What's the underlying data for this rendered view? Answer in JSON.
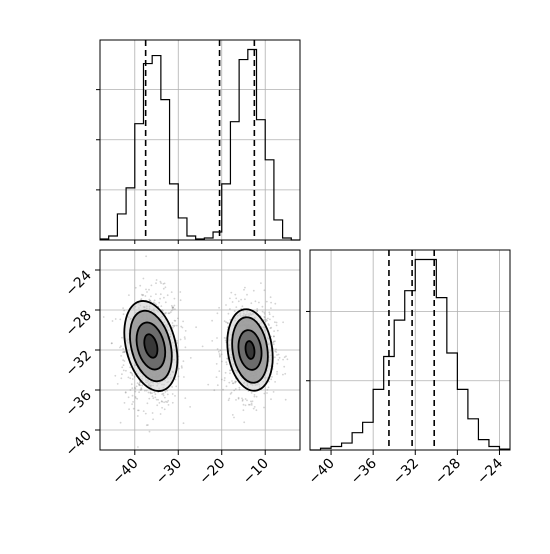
{
  "chart_data": [
    {
      "type": "histogram",
      "panel": "top-left",
      "variable": "x",
      "xlim": [
        -48,
        -2
      ],
      "grid": true,
      "bin_edges": [
        -48,
        -46,
        -44,
        -42,
        -40,
        -38,
        -36,
        -34,
        -32,
        -30,
        -28,
        -26,
        -24,
        -22,
        -20,
        -18,
        -16,
        -14,
        -12,
        -10,
        -8,
        -6,
        -4,
        -2
      ],
      "counts": [
        0.5,
        2,
        13,
        26,
        58,
        88,
        92,
        70,
        28,
        11,
        2,
        0.5,
        1,
        4,
        28,
        59,
        90,
        95,
        60,
        40,
        10,
        1,
        0
      ],
      "quantiles": [
        -37.5,
        -20.5,
        -12.5
      ],
      "y_ticks": [],
      "x_ticks": []
    },
    {
      "type": "scatter",
      "panel": "bottom-left",
      "xlabel": "",
      "ylabel": "",
      "xlim": [
        -48,
        -2
      ],
      "ylim": [
        -42,
        -22
      ],
      "grid": true,
      "x_ticks": [
        "−40",
        "−30",
        "−20",
        "−10"
      ],
      "x_tick_values": [
        -40,
        -30,
        -20,
        -10
      ],
      "y_ticks": [
        "−24",
        "−28",
        "−32",
        "−36",
        "−40"
      ],
      "y_tick_values": [
        -24,
        -28,
        -32,
        -36,
        -40
      ],
      "clusters": [
        {
          "center": [
            -36,
            -32
          ],
          "sd": [
            3.2,
            2.6
          ]
        },
        {
          "center": [
            -13.5,
            -32
          ],
          "sd": [
            2.9,
            2.3
          ]
        }
      ],
      "contours": [
        {
          "center": [
            -36.3,
            -31.6
          ],
          "radii": [
            [
              5.7,
              4.6
            ],
            [
              4.5,
              3.6
            ],
            [
              3.1,
              2.4
            ],
            [
              1.4,
              1.2
            ]
          ],
          "rotation": -14
        },
        {
          "center": [
            -13.5,
            -32.0
          ],
          "radii": [
            [
              5.1,
              4.1
            ],
            [
              4.0,
              3.3
            ],
            [
              2.6,
              2.0
            ],
            [
              1.0,
              0.9
            ]
          ],
          "rotation": -8
        }
      ]
    },
    {
      "type": "histogram",
      "panel": "bottom-right",
      "variable": "y",
      "xlim": [
        -42,
        -23
      ],
      "grid": true,
      "x_ticks": [
        "−40",
        "−36",
        "−32",
        "−28",
        "−24"
      ],
      "x_tick_values": [
        -40,
        -36,
        -32,
        -28,
        -24
      ],
      "bin_edges": [
        -42,
        -41,
        -40,
        -39,
        -38,
        -37,
        -36,
        -35,
        -34,
        -33,
        -32,
        -31,
        -30,
        -29,
        -28,
        -27,
        -26,
        -25,
        -24,
        -23
      ],
      "counts": [
        0,
        1,
        2,
        4,
        10,
        16,
        35,
        54,
        75,
        92,
        110,
        110,
        88,
        56,
        35,
        18,
        6,
        2,
        0.5
      ],
      "quantiles": [
        -34.5,
        -32.3,
        -30.2
      ]
    }
  ],
  "colors": {
    "line": "#000000",
    "grid": "#b0b0b0",
    "point": "#808080",
    "fill_levels": [
      "#cdcdcd",
      "#9a9a9a",
      "#666666",
      "#333333"
    ]
  }
}
